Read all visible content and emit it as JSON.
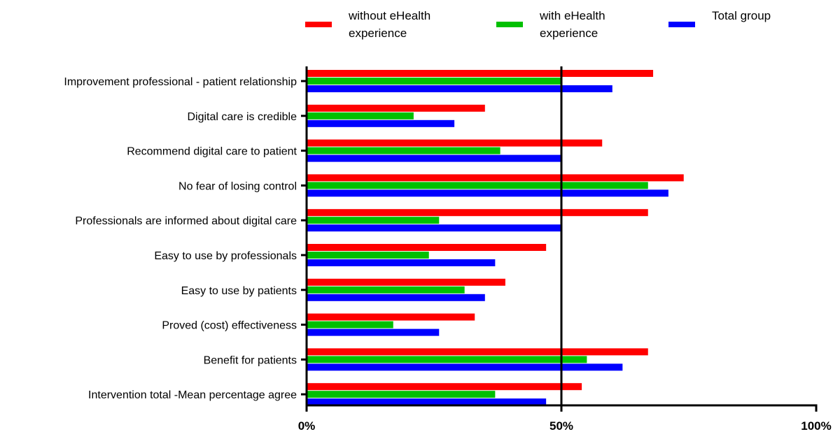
{
  "chart_data": {
    "type": "bar",
    "orientation": "horizontal",
    "title": "",
    "xlabel": "",
    "ylabel": "",
    "xlim": [
      0,
      100
    ],
    "x_ticks": [
      "0%",
      "50%",
      "100%"
    ],
    "reference_line": 50,
    "legend_placement": "top",
    "categories": [
      "Improvement professional - patient relationship",
      "Digital care is credible",
      "Recommend digital care to patient",
      "No fear of losing control",
      "Professionals are informed about digital care",
      "Easy to use by professionals",
      "Easy to use by patients",
      "Proved (cost) effectiveness",
      "Benefit for patients",
      "Intervention total -Mean percentage agree"
    ],
    "series": [
      {
        "name": "without eHealth experience",
        "legend_lines": [
          "without eHealth",
          "experience"
        ],
        "color": "#ff0000",
        "values": [
          68,
          35,
          58,
          74,
          67,
          47,
          39,
          33,
          67,
          54
        ]
      },
      {
        "name": "with eHealth experience",
        "legend_lines": [
          "with eHealth",
          "experience"
        ],
        "color": "#00c000",
        "values": [
          50,
          21,
          38,
          67,
          26,
          24,
          31,
          17,
          55,
          37
        ]
      },
      {
        "name": "Total group",
        "legend_lines": [
          "Total group"
        ],
        "color": "#0000ff",
        "values": [
          60,
          29,
          50,
          71,
          50,
          37,
          35,
          26,
          62,
          47
        ]
      }
    ]
  }
}
